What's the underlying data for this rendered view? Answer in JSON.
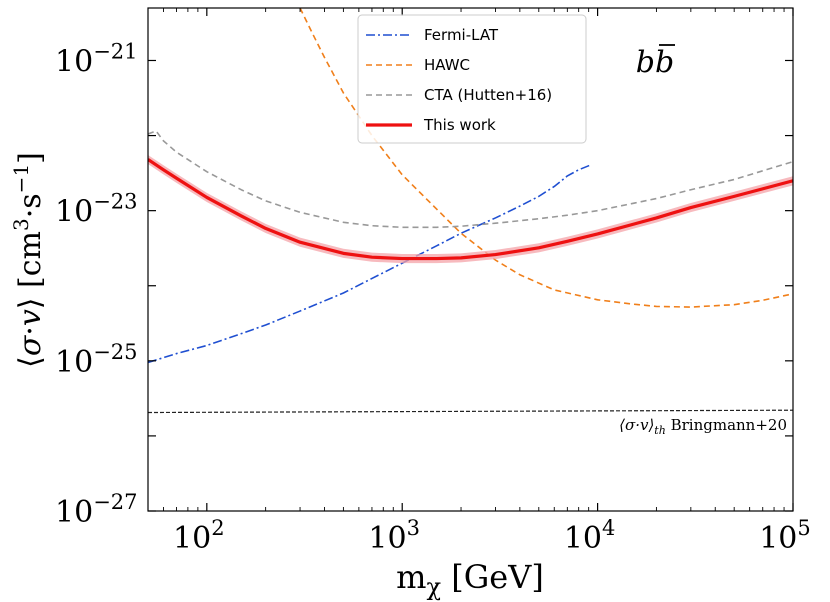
{
  "chart_data": {
    "type": "line",
    "title": "",
    "channel_label": "b b̄",
    "xlabel": "m_χ [GeV]",
    "ylabel": "⟨σ·v⟩ [cm³·s⁻¹]",
    "xscale": "log",
    "yscale": "log",
    "xlim": [
      50,
      100000
    ],
    "ylim": [
      1e-27,
      5e-21
    ],
    "x_ticks": [
      {
        "value": 100,
        "base": "10",
        "exp": "2"
      },
      {
        "value": 1000,
        "base": "10",
        "exp": "3"
      },
      {
        "value": 10000,
        "base": "10",
        "exp": "4"
      },
      {
        "value": 100000,
        "base": "10",
        "exp": "5"
      }
    ],
    "y_ticks": [
      {
        "value": 1e-27,
        "base": "10",
        "exp": "−27"
      },
      {
        "value": 1e-25,
        "base": "10",
        "exp": "−25"
      },
      {
        "value": 1e-23,
        "base": "10",
        "exp": "−23"
      },
      {
        "value": 1e-21,
        "base": "10",
        "exp": "−21"
      }
    ],
    "legend_position": "top-center",
    "series": [
      {
        "name": "Fermi-LAT",
        "color": "#1f4fd1",
        "style": "dashdot",
        "x": [
          50,
          70,
          100,
          150,
          200,
          300,
          500,
          700,
          1000,
          1500,
          2000,
          3000,
          4000,
          5000,
          6000,
          7000,
          8000,
          9300
        ],
        "y": [
          9.5e-26,
          1.25e-25,
          1.6e-25,
          2.3e-25,
          3e-25,
          4.6e-25,
          8e-25,
          1.25e-24,
          2e-24,
          3.4e-24,
          5e-24,
          8e-24,
          1.15e-23,
          1.55e-23,
          2.1e-23,
          2.9e-23,
          3.5e-23,
          4.1e-23
        ]
      },
      {
        "name": "HAWC",
        "color": "#f07f1a",
        "style": "dashed",
        "x": [
          300,
          350,
          400,
          500,
          700,
          1000,
          1500,
          2000,
          3000,
          4000,
          6000,
          10000,
          15000,
          20000,
          30000,
          50000,
          70000,
          100000
        ],
        "y": [
          5e-21,
          2.2e-21,
          1.1e-21,
          3.7e-22,
          1e-22,
          3e-23,
          1.05e-23,
          5e-24,
          2.2e-24,
          1.4e-24,
          8.8e-25,
          6.5e-25,
          5.7e-25,
          5.3e-25,
          5.2e-25,
          5.6e-25,
          6.4e-25,
          7.8e-25
        ]
      },
      {
        "name": "CTA (Hutten+16)",
        "color": "#999999",
        "style": "dashed",
        "x": [
          50,
          55,
          60,
          70,
          100,
          150,
          200,
          300,
          500,
          700,
          1000,
          1500,
          2000,
          3000,
          5000,
          7000,
          10000,
          20000,
          30000,
          50000,
          100000
        ],
        "y": [
          1.05e-22,
          1.15e-22,
          8.5e-23,
          6e-23,
          3.3e-23,
          1.9e-23,
          1.35e-23,
          9.5e-24,
          7e-24,
          6.3e-24,
          6e-24,
          6e-24,
          6.2e-24,
          6.8e-24,
          7.8e-24,
          8.7e-24,
          1e-23,
          1.45e-23,
          1.9e-23,
          2.6e-23,
          4.5e-23
        ]
      },
      {
        "name": "This work",
        "color": "#ee1111",
        "style": "solid",
        "band_color": "#f4a3a8",
        "x": [
          50,
          60,
          70,
          100,
          150,
          200,
          300,
          500,
          700,
          1000,
          1500,
          2000,
          3000,
          5000,
          7000,
          10000,
          20000,
          30000,
          50000,
          100000
        ],
        "y": [
          4.8e-23,
          3.5e-23,
          2.7e-23,
          1.5e-23,
          8.5e-24,
          5.8e-24,
          3.8e-24,
          2.7e-24,
          2.4e-24,
          2.3e-24,
          2.3e-24,
          2.35e-24,
          2.6e-24,
          3.2e-24,
          3.9e-24,
          4.9e-24,
          8e-24,
          1.1e-23,
          1.55e-23,
          2.5e-23
        ]
      }
    ],
    "reference_line": {
      "name": "⟨σ·v⟩th Bringmann+20",
      "label_main": "⟨σ·v⟩",
      "label_sub": "th",
      "label_ref": "Bringmann+20",
      "color": "#222222",
      "style": "dashed",
      "x": [
        50,
        100000
      ],
      "y": [
        2.05e-26,
        2.2e-26
      ]
    },
    "legend_entries": [
      "Fermi-LAT",
      "HAWC",
      "CTA (Hutten+16)",
      "This work"
    ]
  }
}
